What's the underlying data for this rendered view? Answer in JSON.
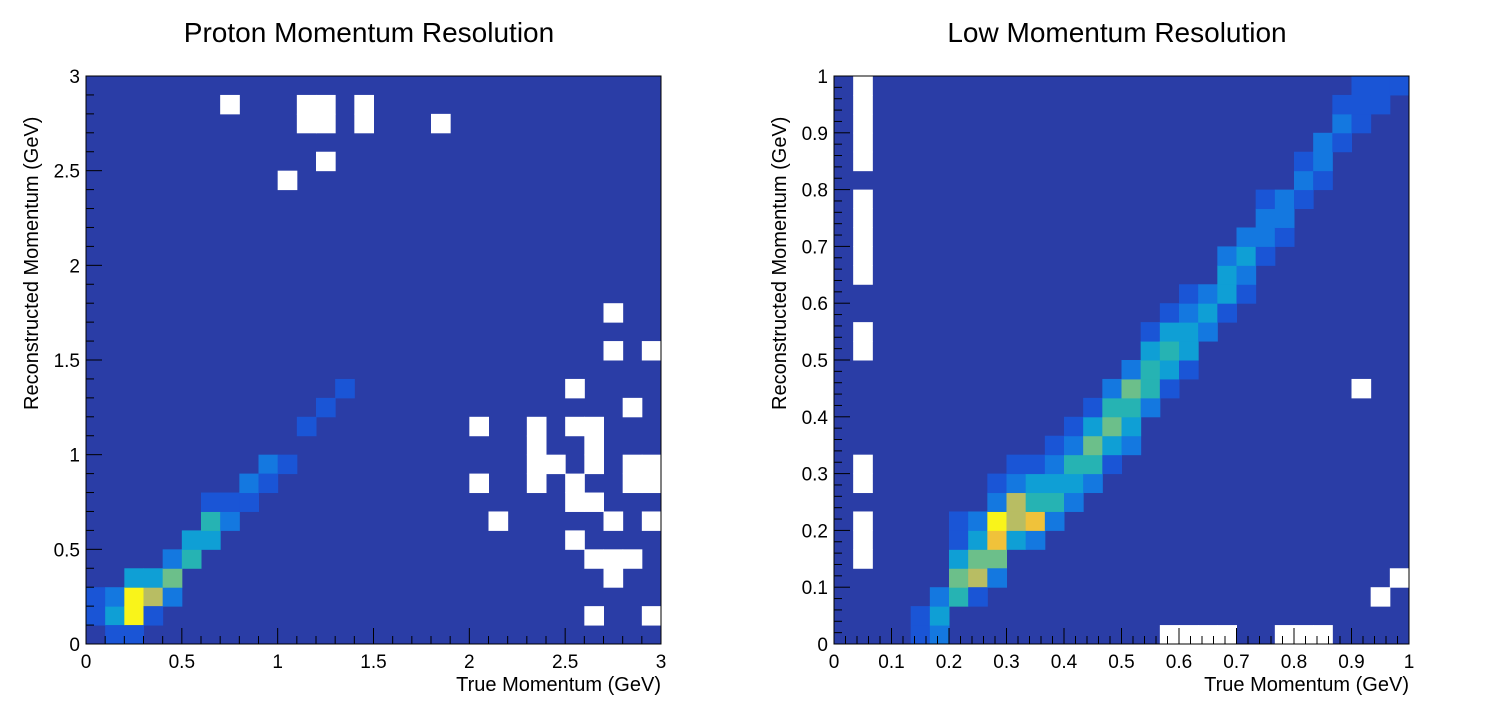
{
  "chart_data": [
    {
      "type": "heatmap",
      "title": "Proton Momentum Resolution",
      "xlabel": "True Momentum (GeV)",
      "ylabel": "Reconstructed Momentum (GeV)",
      "xlim": [
        0,
        3
      ],
      "ylim": [
        0,
        3
      ],
      "x_ticks": [
        "0",
        "0.5",
        "1",
        "1.5",
        "2",
        "2.5",
        "3"
      ],
      "y_ticks": [
        "0",
        "0.5",
        "1",
        "1.5",
        "2",
        "2.5",
        "3"
      ],
      "bins": 30,
      "background_color": "#2a3da6",
      "empty_bin_color": "#ffffff",
      "colors": [
        "#2a3da6",
        "#1a55d6",
        "#1478e0",
        "#0f9fd5",
        "#26b3b3",
        "#6cbf8a",
        "#b8bd63",
        "#f0c23a",
        "#f9f41a"
      ],
      "cells": [
        [
          0,
          0,
          0
        ],
        [
          0,
          1,
          1
        ],
        [
          0,
          2,
          1
        ],
        [
          1,
          1,
          3
        ],
        [
          1,
          2,
          2
        ],
        [
          1,
          0,
          1
        ],
        [
          2,
          1,
          8
        ],
        [
          2,
          2,
          8
        ],
        [
          2,
          3,
          3
        ],
        [
          2,
          0,
          1
        ],
        [
          3,
          2,
          6
        ],
        [
          3,
          3,
          3
        ],
        [
          3,
          1,
          1
        ],
        [
          4,
          2,
          2
        ],
        [
          4,
          3,
          5
        ],
        [
          4,
          4,
          2
        ],
        [
          5,
          4,
          4
        ],
        [
          5,
          5,
          3
        ],
        [
          6,
          5,
          3
        ],
        [
          6,
          6,
          4
        ],
        [
          6,
          7,
          1
        ],
        [
          7,
          6,
          2
        ],
        [
          7,
          7,
          1
        ],
        [
          8,
          7,
          1
        ],
        [
          8,
          8,
          2
        ],
        [
          9,
          9,
          2
        ],
        [
          9,
          8,
          1
        ],
        [
          10,
          9,
          1
        ],
        [
          11,
          11,
          1
        ],
        [
          12,
          12,
          1
        ],
        [
          13,
          13,
          1
        ]
      ],
      "empty_cells": [
        [
          7,
          28
        ],
        [
          11,
          28
        ],
        [
          11,
          27
        ],
        [
          12,
          28
        ],
        [
          12,
          27
        ],
        [
          14,
          28
        ],
        [
          14,
          27
        ],
        [
          18,
          27
        ],
        [
          12,
          25
        ],
        [
          10,
          24
        ],
        [
          27,
          17
        ],
        [
          27,
          15
        ],
        [
          29,
          15
        ],
        [
          25,
          13
        ],
        [
          28,
          12
        ],
        [
          20,
          11
        ],
        [
          23,
          11
        ],
        [
          25,
          11
        ],
        [
          26,
          11
        ],
        [
          23,
          10
        ],
        [
          23,
          9
        ],
        [
          24,
          9
        ],
        [
          26,
          10
        ],
        [
          26,
          9
        ],
        [
          28,
          9
        ],
        [
          29,
          9
        ],
        [
          20,
          8
        ],
        [
          23,
          8
        ],
        [
          25,
          8
        ],
        [
          28,
          8
        ],
        [
          29,
          8
        ],
        [
          25,
          7
        ],
        [
          26,
          7
        ],
        [
          21,
          6
        ],
        [
          27,
          6
        ],
        [
          29,
          6
        ],
        [
          25,
          5
        ],
        [
          26,
          4
        ],
        [
          27,
          4
        ],
        [
          28,
          4
        ],
        [
          27,
          3
        ],
        [
          26,
          1
        ],
        [
          29,
          1
        ]
      ]
    },
    {
      "type": "heatmap",
      "title": "Low Momentum Resolution",
      "xlabel": "True Momentum (GeV)",
      "ylabel": "Reconstructed Momentum (GeV)",
      "xlim": [
        0,
        1
      ],
      "ylim": [
        0,
        1
      ],
      "x_ticks": [
        "0",
        "0.1",
        "0.2",
        "0.3",
        "0.4",
        "0.5",
        "0.6",
        "0.7",
        "0.8",
        "0.9",
        "1"
      ],
      "y_ticks": [
        "0",
        "0.1",
        "0.2",
        "0.3",
        "0.4",
        "0.5",
        "0.6",
        "0.7",
        "0.8",
        "0.9",
        "1"
      ],
      "bins": 30,
      "background_color": "#2a3da6",
      "empty_bin_color": "#ffffff",
      "colors": [
        "#2a3da6",
        "#1a55d6",
        "#1478e0",
        "#0f9fd5",
        "#26b3b3",
        "#6cbf8a",
        "#b8bd63",
        "#f0c23a",
        "#f9f41a"
      ],
      "cells": [
        [
          4,
          0,
          1
        ],
        [
          4,
          1,
          1
        ],
        [
          5,
          0,
          2
        ],
        [
          5,
          1,
          3
        ],
        [
          5,
          2,
          2
        ],
        [
          6,
          2,
          4
        ],
        [
          6,
          3,
          5
        ],
        [
          6,
          4,
          3
        ],
        [
          6,
          5,
          1
        ],
        [
          6,
          6,
          1
        ],
        [
          7,
          3,
          6
        ],
        [
          7,
          4,
          5
        ],
        [
          7,
          5,
          3
        ],
        [
          7,
          6,
          2
        ],
        [
          7,
          2,
          1
        ],
        [
          8,
          4,
          5
        ],
        [
          8,
          5,
          7
        ],
        [
          8,
          6,
          8
        ],
        [
          8,
          7,
          2
        ],
        [
          8,
          8,
          1
        ],
        [
          8,
          3,
          2
        ],
        [
          9,
          5,
          3
        ],
        [
          9,
          6,
          6
        ],
        [
          9,
          7,
          6
        ],
        [
          9,
          8,
          2
        ],
        [
          9,
          9,
          1
        ],
        [
          10,
          5,
          2
        ],
        [
          10,
          6,
          7
        ],
        [
          10,
          7,
          4
        ],
        [
          10,
          8,
          3
        ],
        [
          10,
          9,
          1
        ],
        [
          11,
          6,
          2
        ],
        [
          11,
          7,
          4
        ],
        [
          11,
          8,
          3
        ],
        [
          11,
          9,
          2
        ],
        [
          11,
          10,
          1
        ],
        [
          12,
          7,
          2
        ],
        [
          12,
          8,
          3
        ],
        [
          12,
          9,
          4
        ],
        [
          12,
          10,
          2
        ],
        [
          12,
          11,
          1
        ],
        [
          13,
          8,
          2
        ],
        [
          13,
          9,
          4
        ],
        [
          13,
          10,
          5
        ],
        [
          13,
          11,
          3
        ],
        [
          13,
          12,
          1
        ],
        [
          14,
          9,
          1
        ],
        [
          14,
          10,
          3
        ],
        [
          14,
          11,
          5
        ],
        [
          14,
          12,
          4
        ],
        [
          14,
          13,
          2
        ],
        [
          15,
          10,
          2
        ],
        [
          15,
          11,
          3
        ],
        [
          15,
          12,
          4
        ],
        [
          15,
          13,
          5
        ],
        [
          15,
          14,
          2
        ],
        [
          16,
          12,
          2
        ],
        [
          16,
          13,
          4
        ],
        [
          16,
          14,
          4
        ],
        [
          16,
          15,
          3
        ],
        [
          16,
          16,
          1
        ],
        [
          17,
          13,
          1
        ],
        [
          17,
          14,
          3
        ],
        [
          17,
          15,
          4
        ],
        [
          17,
          16,
          3
        ],
        [
          17,
          17,
          1
        ],
        [
          18,
          14,
          1
        ],
        [
          18,
          15,
          3
        ],
        [
          18,
          16,
          3
        ],
        [
          18,
          17,
          2
        ],
        [
          18,
          18,
          1
        ],
        [
          19,
          16,
          2
        ],
        [
          19,
          17,
          3
        ],
        [
          19,
          18,
          2
        ],
        [
          20,
          17,
          1
        ],
        [
          20,
          18,
          3
        ],
        [
          20,
          19,
          3
        ],
        [
          20,
          20,
          2
        ],
        [
          21,
          18,
          1
        ],
        [
          21,
          19,
          2
        ],
        [
          21,
          20,
          3
        ],
        [
          21,
          21,
          2
        ],
        [
          22,
          20,
          1
        ],
        [
          22,
          21,
          2
        ],
        [
          22,
          22,
          2
        ],
        [
          22,
          23,
          1
        ],
        [
          23,
          21,
          1
        ],
        [
          23,
          22,
          2
        ],
        [
          23,
          23,
          2
        ],
        [
          24,
          23,
          1
        ],
        [
          24,
          24,
          2
        ],
        [
          24,
          25,
          1
        ],
        [
          25,
          24,
          1
        ],
        [
          25,
          25,
          2
        ],
        [
          25,
          26,
          2
        ],
        [
          26,
          26,
          1
        ],
        [
          26,
          27,
          2
        ],
        [
          26,
          28,
          1
        ],
        [
          27,
          27,
          1
        ],
        [
          27,
          28,
          1
        ],
        [
          27,
          29,
          1
        ],
        [
          28,
          28,
          1
        ],
        [
          28,
          29,
          1
        ],
        [
          29,
          29,
          1
        ]
      ],
      "empty_cells": [
        [
          1,
          29
        ],
        [
          1,
          28
        ],
        [
          1,
          27
        ],
        [
          1,
          26
        ],
        [
          1,
          25
        ],
        [
          1,
          23
        ],
        [
          1,
          22
        ],
        [
          1,
          21
        ],
        [
          1,
          20
        ],
        [
          1,
          19
        ],
        [
          1,
          16
        ],
        [
          1,
          15
        ],
        [
          1,
          9
        ],
        [
          1,
          8
        ],
        [
          1,
          6
        ],
        [
          1,
          5
        ],
        [
          1,
          4
        ],
        [
          27,
          13
        ],
        [
          29,
          3
        ],
        [
          28,
          2
        ],
        [
          17,
          0
        ],
        [
          18,
          0
        ],
        [
          19,
          0
        ],
        [
          20,
          0
        ],
        [
          23,
          0
        ],
        [
          24,
          0
        ],
        [
          25,
          0
        ]
      ]
    }
  ]
}
